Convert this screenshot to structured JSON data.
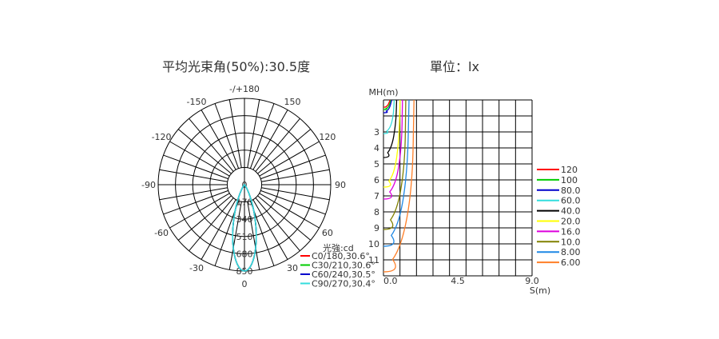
{
  "polar_title": "平均光束角(50%):30.5度",
  "iso_title": "單位：lx",
  "chart_data": [
    {
      "type": "polar",
      "title": "平均光束角(50%):30.5度",
      "angle_labels": [
        {
          "text": "-/+180",
          "deg": 180
        },
        {
          "text": "-150",
          "deg": 150
        },
        {
          "text": "150",
          "deg": -150
        },
        {
          "text": "-120",
          "deg": 120
        },
        {
          "text": "120",
          "deg": -120
        },
        {
          "text": "-90",
          "deg": 90
        },
        {
          "text": "90",
          "deg": -90
        },
        {
          "text": "-60",
          "deg": 60
        },
        {
          "text": "60",
          "deg": -60
        },
        {
          "text": "-30",
          "deg": 30
        },
        {
          "text": "30",
          "deg": -30
        },
        {
          "text": "0",
          "deg": 0
        }
      ],
      "radial_labels": [
        "0",
        "170",
        "340",
        "510",
        "680",
        "850"
      ],
      "radial_max": 850,
      "unit_label": "光強:cd",
      "peak_cd": 850,
      "series": [
        {
          "name": "C0/180,30.6°",
          "color": "#ff0000",
          "beam_deg": 30.6
        },
        {
          "name": "C30/210,30.6°",
          "color": "#00cc00",
          "beam_deg": 30.6
        },
        {
          "name": "C60/240,30.5°",
          "color": "#0000cc",
          "beam_deg": 30.5
        },
        {
          "name": "C90/270,30.4°",
          "color": "#33dddd",
          "beam_deg": 30.4
        }
      ]
    },
    {
      "type": "line",
      "title": "單位：lx",
      "ylabel": "MH(m)",
      "xlabel": "S(m)",
      "x_ticks": [
        "0.0",
        "4.5",
        "9.0"
      ],
      "y_ticks": [
        "3",
        "4",
        "5",
        "6",
        "7",
        "8",
        "9",
        "10",
        "11"
      ],
      "xlim": [
        0,
        9
      ],
      "ylim": [
        1,
        12
      ],
      "series": [
        {
          "name": "120",
          "color": "#ff0000",
          "x": [
            0,
            0.25,
            0.4
          ],
          "y": [
            1.45,
            1.4,
            1
          ]
        },
        {
          "name": "100",
          "color": "#00cc00",
          "x": [
            0,
            0.3,
            0.45
          ],
          "y": [
            1.6,
            1.5,
            1
          ]
        },
        {
          "name": "80.0",
          "color": "#0000cc",
          "x": [
            0,
            0.35,
            0.5
          ],
          "y": [
            1.8,
            1.6,
            1
          ]
        },
        {
          "name": "60.0",
          "color": "#33dddd",
          "x": [
            0,
            0.4,
            0.6,
            0.65
          ],
          "y": [
            3.1,
            2.8,
            2.0,
            1
          ]
        },
        {
          "name": "40.0",
          "color": "#000000",
          "x": [
            0,
            0.5,
            0.75,
            0.8
          ],
          "y": [
            4.6,
            4.0,
            2.5,
            1
          ]
        },
        {
          "name": "20.0",
          "color": "#ffff00",
          "x": [
            0,
            0.65,
            0.95,
            1.0
          ],
          "y": [
            6.45,
            5.7,
            3.5,
            1
          ]
        },
        {
          "name": "16.0",
          "color": "#dd00dd",
          "x": [
            0,
            0.75,
            1.1,
            1.15
          ],
          "y": [
            7.2,
            6.3,
            4.0,
            1
          ]
        },
        {
          "name": "10.0",
          "color": "#808000",
          "x": [
            0,
            0.85,
            1.3,
            1.35
          ],
          "y": [
            9.1,
            7.9,
            5.0,
            1
          ]
        },
        {
          "name": "8.00",
          "color": "#1e88e5",
          "x": [
            0,
            0.95,
            1.45,
            1.55
          ],
          "y": [
            10.15,
            8.8,
            5.5,
            1
          ]
        },
        {
          "name": "6.00",
          "color": "#ff7f27",
          "x": [
            0,
            1.1,
            1.75,
            1.85
          ],
          "y": [
            11.75,
            10.2,
            6.5,
            1
          ]
        }
      ]
    }
  ]
}
